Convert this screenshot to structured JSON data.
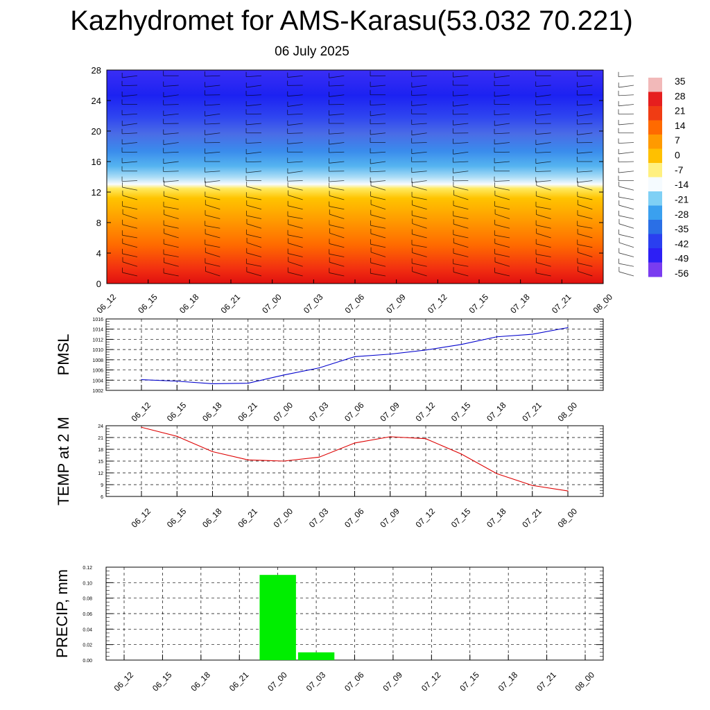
{
  "title": "Kazhydromet for AMS-Karasu(53.032 70.221)",
  "subtitle": "06 July 2025",
  "time_labels": [
    "06_12",
    "06_15",
    "06_18",
    "06_21",
    "07_00",
    "07_03",
    "07_06",
    "07_09",
    "07_12",
    "07_15",
    "07_18",
    "07_21",
    "08_00"
  ],
  "chart_data": [
    {
      "type": "heatmap",
      "title": "Kazhydromet for AMS-Karasu(53.032 70.221)",
      "subtitle": "06 July 2025",
      "y_ticks": [
        0,
        4,
        8,
        12,
        16,
        20,
        24,
        28
      ],
      "ylim": [
        0,
        28
      ],
      "x_categories": [
        "06_12",
        "06_15",
        "06_18",
        "06_21",
        "07_00",
        "07_03",
        "07_06",
        "07_09",
        "07_12",
        "07_15",
        "07_18",
        "07_21",
        "08_00"
      ],
      "colorbar_labels": [
        "35",
        "28",
        "21",
        "14",
        "7",
        "0",
        "-7",
        "-14",
        "-21",
        "-28",
        "-35",
        "-42",
        "-49",
        "-56"
      ],
      "colorbar_colors": [
        "#f2b9b9",
        "#e61e1e",
        "#f03c14",
        "#ff6a00",
        "#ff9a00",
        "#ffc000",
        "#fff080",
        "#f5fbff",
        "#7fd0f5",
        "#3aa0ef",
        "#2a6fe6",
        "#2a3ff0",
        "#2d1ff5",
        "#7a3cf0"
      ],
      "surface_level_note": "temperature shading with wind barbs",
      "grid": false
    },
    {
      "type": "line",
      "ylabel": "PMSL",
      "x": [
        "06_12",
        "06_15",
        "06_18",
        "06_21",
        "07_00",
        "07_03",
        "07_06",
        "07_09",
        "07_12",
        "07_15",
        "07_18",
        "07_21",
        "08_00"
      ],
      "series": [
        {
          "values": [
            1004.1,
            1003.8,
            1003.3,
            1003.4,
            1005.0,
            1006.4,
            1008.6,
            1009.1,
            1009.9,
            1011.0,
            1012.5,
            1013.0,
            1014.3
          ],
          "color": "#0000cc"
        }
      ],
      "ylim": [
        1002,
        1016
      ],
      "y_ticks": [
        1002,
        1004,
        1006,
        1008,
        1010,
        1012,
        1014,
        1016
      ],
      "grid": true
    },
    {
      "type": "line",
      "ylabel": "TEMP at 2 M",
      "x": [
        "06_12",
        "06_15",
        "06_18",
        "06_21",
        "07_00",
        "07_03",
        "07_06",
        "07_09",
        "07_12",
        "07_15",
        "07_18",
        "07_21",
        "08_00"
      ],
      "series": [
        {
          "values": [
            23.6,
            21.3,
            17.4,
            15.3,
            15.0,
            16.0,
            19.6,
            21.2,
            20.7,
            16.8,
            11.8,
            8.8,
            7.4
          ],
          "color": "#dd0000"
        }
      ],
      "ylim": [
        6,
        24
      ],
      "y_ticks": [
        6,
        9,
        12,
        15,
        18,
        21,
        24
      ],
      "grid": true
    },
    {
      "type": "bar",
      "ylabel": "PRECIP, mm",
      "categories": [
        "06_12",
        "06_15",
        "06_18",
        "06_21",
        "07_00",
        "07_03",
        "07_06",
        "07_09",
        "07_12",
        "07_15",
        "07_18",
        "07_21",
        "08_00"
      ],
      "values": [
        0,
        0,
        0,
        0,
        0.11,
        0.01,
        0,
        0,
        0,
        0,
        0,
        0,
        0
      ],
      "color": "#00ee00",
      "ylim": [
        0,
        0.12
      ],
      "y_ticks": [
        "0.00",
        "0.02",
        "0.04",
        "0.06",
        "0.08",
        "0.10",
        "0.12"
      ],
      "grid": true
    }
  ]
}
